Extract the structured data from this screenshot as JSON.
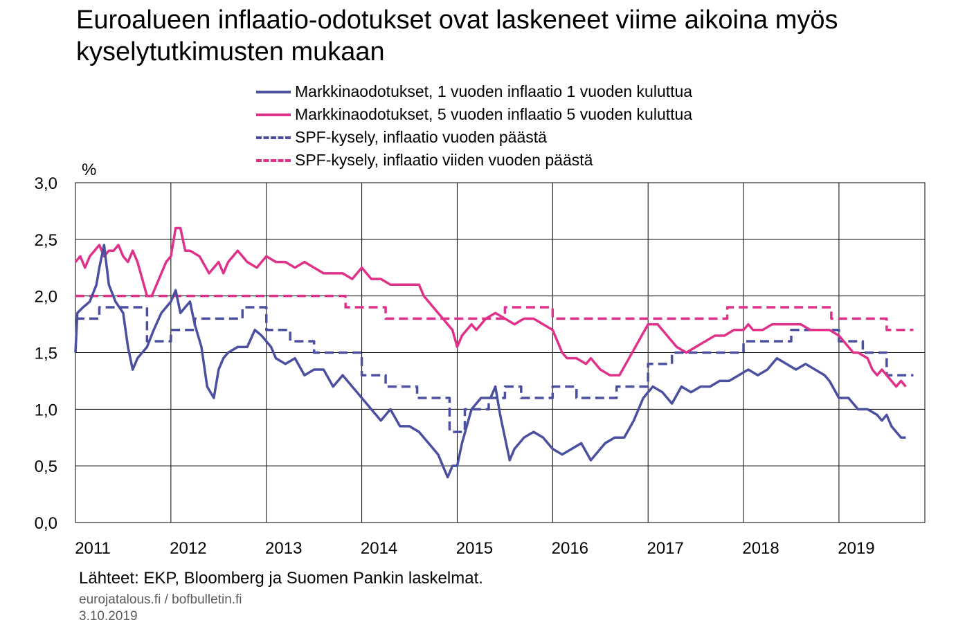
{
  "title": "Euroalueen inflaatio-odotukset ovat laskeneet viime aikoina myös kyselytutkimusten mukaan",
  "unit": "%",
  "source": "Lähteet: EKP, Bloomberg ja Suomen Pankin laskelmat.",
  "site": "eurojatalous.fi  / bofbulletin.fi",
  "date": "3.10.2019",
  "colors": {
    "blue": "#4a4fa0",
    "pink": "#e0318a",
    "grid": "#000000"
  },
  "chart_data": {
    "type": "line",
    "xlim": [
      2011.0,
      2019.9
    ],
    "ylim": [
      0,
      3
    ],
    "yticks": [
      "0,0",
      "0,5",
      "1,0",
      "1,5",
      "2,0",
      "2,5",
      "3,0"
    ],
    "ytick_values": [
      0,
      0.5,
      1,
      1.5,
      2,
      2.5,
      3
    ],
    "xticks": [
      "2011",
      "2012",
      "2013",
      "2014",
      "2015",
      "2016",
      "2017",
      "2018",
      "2019"
    ],
    "xtick_values": [
      2011,
      2012,
      2013,
      2014,
      2015,
      2016,
      2017,
      2018,
      2019
    ],
    "grid": true,
    "legend_position": "top",
    "series": [
      {
        "name": "Markkinaodotukset, 1 vuoden inflaatio 1 vuoden kuluttua",
        "color": "#4a4fa0",
        "style": "solid",
        "x": [
          2011.0,
          2011.02,
          2011.08,
          2011.15,
          2011.22,
          2011.25,
          2011.3,
          2011.35,
          2011.42,
          2011.5,
          2011.55,
          2011.6,
          2011.65,
          2011.75,
          2011.82,
          2011.9,
          2012.0,
          2012.05,
          2012.1,
          2012.15,
          2012.2,
          2012.25,
          2012.32,
          2012.38,
          2012.45,
          2012.5,
          2012.55,
          2012.6,
          2012.7,
          2012.8,
          2012.88,
          2012.95,
          2013.05,
          2013.1,
          2013.2,
          2013.3,
          2013.4,
          2013.5,
          2013.6,
          2013.7,
          2013.8,
          2013.9,
          2014.0,
          2014.05,
          2014.1,
          2014.2,
          2014.3,
          2014.4,
          2014.5,
          2014.6,
          2014.7,
          2014.8,
          2014.9,
          2014.95,
          2015.0,
          2015.05,
          2015.1,
          2015.15,
          2015.25,
          2015.35,
          2015.4,
          2015.45,
          2015.5,
          2015.55,
          2015.6,
          2015.7,
          2015.8,
          2015.9,
          2016.0,
          2016.1,
          2016.2,
          2016.3,
          2016.4,
          2016.45,
          2016.5,
          2016.55,
          2016.65,
          2016.75,
          2016.85,
          2016.95,
          2017.05,
          2017.15,
          2017.25,
          2017.35,
          2017.45,
          2017.55,
          2017.65,
          2017.75,
          2017.85,
          2017.95,
          2018.05,
          2018.15,
          2018.25,
          2018.35,
          2018.45,
          2018.55,
          2018.65,
          2018.75,
          2018.85,
          2018.9,
          2019.0,
          2019.05,
          2019.1,
          2019.2,
          2019.3,
          2019.4,
          2019.45,
          2019.5,
          2019.55,
          2019.6,
          2019.65,
          2019.7
        ],
        "y": [
          1.5,
          1.85,
          1.9,
          1.95,
          2.1,
          2.25,
          2.45,
          2.1,
          1.95,
          1.85,
          1.55,
          1.35,
          1.45,
          1.55,
          1.7,
          1.85,
          1.95,
          2.05,
          1.85,
          1.9,
          1.95,
          1.75,
          1.55,
          1.2,
          1.1,
          1.35,
          1.45,
          1.5,
          1.55,
          1.55,
          1.7,
          1.65,
          1.55,
          1.45,
          1.4,
          1.45,
          1.3,
          1.35,
          1.35,
          1.2,
          1.3,
          1.2,
          1.1,
          1.05,
          1.0,
          0.9,
          1.0,
          0.85,
          0.85,
          0.8,
          0.7,
          0.6,
          0.4,
          0.5,
          0.5,
          0.7,
          0.85,
          1.0,
          1.1,
          1.1,
          1.2,
          0.95,
          0.75,
          0.55,
          0.65,
          0.75,
          0.8,
          0.75,
          0.65,
          0.6,
          0.65,
          0.7,
          0.55,
          0.6,
          0.65,
          0.7,
          0.75,
          0.75,
          0.9,
          1.1,
          1.2,
          1.15,
          1.05,
          1.2,
          1.15,
          1.2,
          1.2,
          1.25,
          1.25,
          1.3,
          1.35,
          1.3,
          1.35,
          1.45,
          1.4,
          1.35,
          1.4,
          1.35,
          1.3,
          1.25,
          1.1,
          1.1,
          1.1,
          1.0,
          1.0,
          0.95,
          0.9,
          0.95,
          0.85,
          0.8,
          0.75,
          0.75
        ]
      },
      {
        "name": "Markkinaodotukset, 5 vuoden inflaatio 5 vuoden kuluttua",
        "color": "#e0318a",
        "style": "solid",
        "x": [
          2011.0,
          2011.05,
          2011.1,
          2011.15,
          2011.2,
          2011.25,
          2011.3,
          2011.35,
          2011.4,
          2011.45,
          2011.5,
          2011.55,
          2011.6,
          2011.65,
          2011.7,
          2011.75,
          2011.8,
          2011.85,
          2011.9,
          2011.95,
          2012.0,
          2012.05,
          2012.1,
          2012.15,
          2012.2,
          2012.3,
          2012.4,
          2012.45,
          2012.5,
          2012.55,
          2012.6,
          2012.65,
          2012.7,
          2012.75,
          2012.8,
          2012.9,
          2013.0,
          2013.1,
          2013.2,
          2013.3,
          2013.4,
          2013.5,
          2013.6,
          2013.7,
          2013.8,
          2013.9,
          2014.0,
          2014.1,
          2014.2,
          2014.3,
          2014.4,
          2014.5,
          2014.6,
          2014.65,
          2014.7,
          2014.8,
          2014.9,
          2014.95,
          2015.0,
          2015.05,
          2015.1,
          2015.15,
          2015.2,
          2015.3,
          2015.4,
          2015.5,
          2015.6,
          2015.7,
          2015.8,
          2015.9,
          2016.0,
          2016.05,
          2016.1,
          2016.15,
          2016.25,
          2016.35,
          2016.4,
          2016.5,
          2016.6,
          2016.7,
          2016.8,
          2016.9,
          2017.0,
          2017.1,
          2017.2,
          2017.3,
          2017.4,
          2017.5,
          2017.6,
          2017.7,
          2017.8,
          2017.9,
          2018.0,
          2018.05,
          2018.1,
          2018.2,
          2018.3,
          2018.4,
          2018.5,
          2018.6,
          2018.7,
          2018.8,
          2018.9,
          2019.0,
          2019.05,
          2019.1,
          2019.15,
          2019.2,
          2019.3,
          2019.35,
          2019.4,
          2019.45,
          2019.5,
          2019.55,
          2019.6,
          2019.65,
          2019.7
        ],
        "y": [
          2.3,
          2.35,
          2.25,
          2.35,
          2.4,
          2.45,
          2.35,
          2.4,
          2.4,
          2.45,
          2.35,
          2.3,
          2.4,
          2.3,
          2.15,
          2.0,
          2.0,
          2.1,
          2.2,
          2.3,
          2.35,
          2.6,
          2.6,
          2.4,
          2.4,
          2.35,
          2.2,
          2.25,
          2.3,
          2.2,
          2.3,
          2.35,
          2.4,
          2.35,
          2.3,
          2.25,
          2.35,
          2.3,
          2.3,
          2.25,
          2.3,
          2.25,
          2.2,
          2.2,
          2.2,
          2.15,
          2.25,
          2.15,
          2.15,
          2.1,
          2.1,
          2.1,
          2.1,
          2.0,
          1.95,
          1.85,
          1.75,
          1.7,
          1.55,
          1.65,
          1.7,
          1.75,
          1.7,
          1.8,
          1.85,
          1.8,
          1.75,
          1.8,
          1.8,
          1.75,
          1.7,
          1.6,
          1.5,
          1.45,
          1.45,
          1.4,
          1.45,
          1.35,
          1.3,
          1.3,
          1.45,
          1.6,
          1.75,
          1.75,
          1.65,
          1.55,
          1.5,
          1.55,
          1.6,
          1.65,
          1.65,
          1.7,
          1.7,
          1.75,
          1.7,
          1.7,
          1.75,
          1.75,
          1.75,
          1.75,
          1.7,
          1.7,
          1.7,
          1.65,
          1.6,
          1.55,
          1.5,
          1.5,
          1.45,
          1.35,
          1.3,
          1.35,
          1.3,
          1.25,
          1.2,
          1.25,
          1.2
        ]
      },
      {
        "name": "SPF-kysely, inflaatio vuoden päästä",
        "color": "#4a4fa0",
        "style": "dashed",
        "x": [
          2011.0,
          2011.08,
          2011.17,
          2011.25,
          2011.42,
          2011.5,
          2011.58,
          2011.67,
          2011.75,
          2011.83,
          2011.92,
          2012.0,
          2012.08,
          2012.17,
          2012.25,
          2012.33,
          2012.42,
          2012.5,
          2012.58,
          2012.67,
          2012.75,
          2012.83,
          2012.92,
          2013.0,
          2013.08,
          2013.17,
          2013.25,
          2013.33,
          2013.42,
          2013.5,
          2013.58,
          2013.67,
          2013.75,
          2013.83,
          2013.92,
          2014.0,
          2014.08,
          2014.17,
          2014.25,
          2014.33,
          2014.42,
          2014.5,
          2014.58,
          2014.67,
          2014.75,
          2014.83,
          2014.92,
          2015.0,
          2015.08,
          2015.17,
          2015.25,
          2015.33,
          2015.42,
          2015.5,
          2015.58,
          2015.67,
          2015.75,
          2015.83,
          2015.92,
          2016.0,
          2016.08,
          2016.17,
          2016.25,
          2016.33,
          2016.42,
          2016.5,
          2016.58,
          2016.67,
          2016.75,
          2016.83,
          2016.92,
          2017.0,
          2017.08,
          2017.17,
          2017.25,
          2017.33,
          2017.42,
          2017.5,
          2017.58,
          2017.67,
          2017.75,
          2017.83,
          2017.92,
          2018.0,
          2018.08,
          2018.17,
          2018.25,
          2018.33,
          2018.42,
          2018.5,
          2018.58,
          2018.67,
          2018.75,
          2018.83,
          2018.92,
          2019.0,
          2019.08,
          2019.17,
          2019.25,
          2019.33,
          2019.42,
          2019.5,
          2019.58,
          2019.67,
          2019.75
        ],
        "y": [
          1.8,
          1.8,
          1.8,
          1.9,
          1.9,
          1.9,
          1.9,
          1.9,
          1.6,
          1.6,
          1.6,
          1.7,
          1.7,
          1.7,
          1.8,
          1.8,
          1.8,
          1.8,
          1.8,
          1.8,
          1.9,
          1.9,
          1.9,
          1.7,
          1.7,
          1.7,
          1.6,
          1.6,
          1.6,
          1.5,
          1.5,
          1.5,
          1.5,
          1.5,
          1.5,
          1.3,
          1.3,
          1.3,
          1.2,
          1.2,
          1.2,
          1.2,
          1.1,
          1.1,
          1.1,
          1.1,
          0.8,
          0.8,
          1.0,
          1.0,
          1.0,
          1.1,
          1.1,
          1.2,
          1.2,
          1.1,
          1.1,
          1.1,
          1.1,
          1.2,
          1.2,
          1.2,
          1.1,
          1.1,
          1.1,
          1.1,
          1.1,
          1.2,
          1.2,
          1.2,
          1.2,
          1.4,
          1.4,
          1.4,
          1.5,
          1.5,
          1.5,
          1.5,
          1.5,
          1.5,
          1.5,
          1.5,
          1.5,
          1.6,
          1.6,
          1.6,
          1.6,
          1.6,
          1.6,
          1.7,
          1.7,
          1.7,
          1.7,
          1.7,
          1.7,
          1.6,
          1.6,
          1.6,
          1.5,
          1.5,
          1.5,
          1.3,
          1.3,
          1.3,
          1.3
        ]
      },
      {
        "name": "SPF-kysely, inflaatio viiden vuoden päästä",
        "color": "#e0318a",
        "style": "dashed",
        "x": [
          2011.0,
          2011.25,
          2011.5,
          2011.75,
          2012.0,
          2012.25,
          2012.5,
          2012.75,
          2013.0,
          2013.25,
          2013.5,
          2013.75,
          2013.83,
          2014.0,
          2014.25,
          2014.5,
          2014.75,
          2015.0,
          2015.25,
          2015.5,
          2015.75,
          2016.0,
          2016.25,
          2016.5,
          2016.75,
          2017.0,
          2017.25,
          2017.5,
          2017.75,
          2017.83,
          2018.0,
          2018.25,
          2018.5,
          2018.75,
          2018.92,
          2019.0,
          2019.25,
          2019.5,
          2019.75
        ],
        "y": [
          2.0,
          2.0,
          2.0,
          2.0,
          2.0,
          2.0,
          2.0,
          2.0,
          2.0,
          2.0,
          2.0,
          2.0,
          1.9,
          1.9,
          1.8,
          1.8,
          1.8,
          1.8,
          1.8,
          1.9,
          1.9,
          1.8,
          1.8,
          1.8,
          1.8,
          1.8,
          1.8,
          1.8,
          1.8,
          1.9,
          1.9,
          1.9,
          1.9,
          1.9,
          1.8,
          1.8,
          1.8,
          1.7,
          1.7
        ]
      }
    ]
  }
}
